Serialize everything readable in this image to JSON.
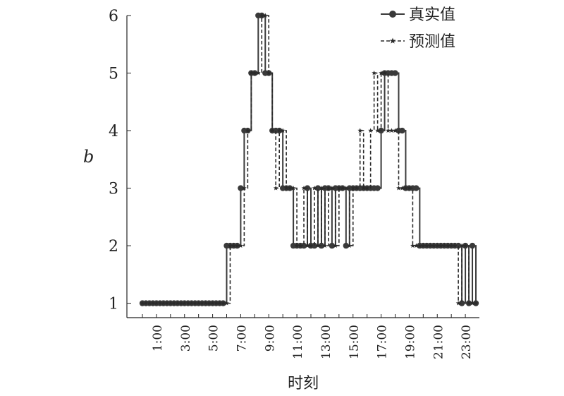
{
  "chart_data": {
    "type": "line",
    "xlabel": "时刻",
    "ylabel": "b",
    "ylim": [
      1,
      6
    ],
    "xlim": [
      0,
      24
    ],
    "yticks": [
      1,
      2,
      3,
      4,
      5,
      6
    ],
    "xticks": [
      1,
      3,
      5,
      7,
      9,
      11,
      13,
      15,
      17,
      19,
      21,
      23
    ],
    "xtick_labels": [
      "1:00",
      "3:00",
      "5:00",
      "7:00",
      "9:00",
      "11:00",
      "13:00",
      "15:00",
      "17:00",
      "19:00",
      "21:00",
      "23:00"
    ],
    "legend_position": "top-right",
    "series": [
      {
        "name": "真实值",
        "style": "solid-circle",
        "color": "#3a3a3a",
        "x": [
          0.0,
          0.25,
          0.5,
          0.75,
          1.0,
          1.25,
          1.5,
          1.75,
          2.0,
          2.25,
          2.5,
          2.75,
          3.0,
          3.25,
          3.5,
          3.75,
          4.0,
          4.25,
          4.5,
          4.75,
          5.0,
          5.25,
          5.5,
          5.75,
          6.0,
          6.25,
          6.5,
          6.75,
          7.0,
          7.25,
          7.5,
          7.75,
          8.0,
          8.25,
          8.5,
          8.75,
          9.0,
          9.25,
          9.5,
          9.75,
          10.0,
          10.25,
          10.5,
          10.75,
          11.0,
          11.25,
          11.5,
          11.75,
          12.0,
          12.25,
          12.5,
          12.75,
          13.0,
          13.25,
          13.5,
          13.75,
          14.0,
          14.25,
          14.5,
          14.75,
          15.0,
          15.25,
          15.5,
          15.75,
          16.0,
          16.25,
          16.5,
          16.75,
          17.0,
          17.25,
          17.5,
          17.75,
          18.0,
          18.25,
          18.5,
          18.75,
          19.0,
          19.25,
          19.5,
          19.75,
          20.0,
          20.25,
          20.5,
          20.75,
          21.0,
          21.25,
          21.5,
          21.75,
          22.0,
          22.25,
          22.5,
          22.75,
          23.0,
          23.25,
          23.5,
          23.75
        ],
        "values": [
          1,
          1,
          1,
          1,
          1,
          1,
          1,
          1,
          1,
          1,
          1,
          1,
          1,
          1,
          1,
          1,
          1,
          1,
          1,
          1,
          1,
          1,
          1,
          1,
          2,
          2,
          2,
          2,
          3,
          4,
          4,
          5,
          5,
          6,
          6,
          5,
          5,
          4,
          4,
          4,
          3,
          3,
          3,
          2,
          2,
          2,
          2,
          3,
          2,
          2,
          3,
          2,
          3,
          3,
          2,
          3,
          3,
          3,
          2,
          3,
          3,
          3,
          3,
          3,
          3,
          3,
          3,
          3,
          4,
          5,
          5,
          5,
          5,
          4,
          4,
          3,
          3,
          3,
          3,
          2,
          2,
          2,
          2,
          2,
          2,
          2,
          2,
          2,
          2,
          2,
          2,
          1,
          2,
          1,
          2,
          1
        ]
      },
      {
        "name": "预测值",
        "style": "dashed-star",
        "color": "#2a2a2a",
        "x": [
          0.0,
          0.25,
          0.5,
          0.75,
          1.0,
          1.25,
          1.5,
          1.75,
          2.0,
          2.25,
          2.5,
          2.75,
          3.0,
          3.25,
          3.5,
          3.75,
          4.0,
          4.25,
          4.5,
          4.75,
          5.0,
          5.25,
          5.5,
          5.75,
          6.0,
          6.25,
          6.5,
          6.75,
          7.0,
          7.25,
          7.5,
          7.75,
          8.0,
          8.25,
          8.5,
          8.75,
          9.0,
          9.25,
          9.5,
          9.75,
          10.0,
          10.25,
          10.5,
          10.75,
          11.0,
          11.25,
          11.5,
          11.75,
          12.0,
          12.25,
          12.5,
          12.75,
          13.0,
          13.25,
          13.5,
          13.75,
          14.0,
          14.25,
          14.5,
          14.75,
          15.0,
          15.25,
          15.5,
          15.75,
          16.0,
          16.25,
          16.5,
          16.75,
          17.0,
          17.25,
          17.5,
          17.75,
          18.0,
          18.25,
          18.5,
          18.75,
          19.0,
          19.25,
          19.5,
          19.75,
          20.0,
          20.25,
          20.5,
          20.75,
          21.0,
          21.25,
          21.5,
          21.75,
          22.0,
          22.25,
          22.5,
          22.75,
          23.0,
          23.25,
          23.5,
          23.75
        ],
        "values": [
          1,
          1,
          1,
          1,
          1,
          1,
          1,
          1,
          1,
          1,
          1,
          1,
          1,
          1,
          1,
          1,
          1,
          1,
          1,
          1,
          1,
          1,
          1,
          1,
          1,
          2,
          2,
          2,
          2,
          3,
          4,
          5,
          5,
          5,
          6,
          6,
          5,
          4,
          3,
          4,
          4,
          3,
          3,
          3,
          2,
          2,
          3,
          2,
          2,
          3,
          2,
          3,
          2,
          3,
          3,
          2,
          3,
          3,
          3,
          2,
          3,
          3,
          4,
          3,
          3,
          4,
          5,
          4,
          5,
          5,
          4,
          4,
          4,
          3,
          3,
          3,
          3,
          2,
          2,
          2,
          2,
          2,
          2,
          2,
          2,
          2,
          2,
          2,
          2,
          2,
          1,
          2,
          2,
          1,
          1,
          1
        ]
      }
    ]
  }
}
